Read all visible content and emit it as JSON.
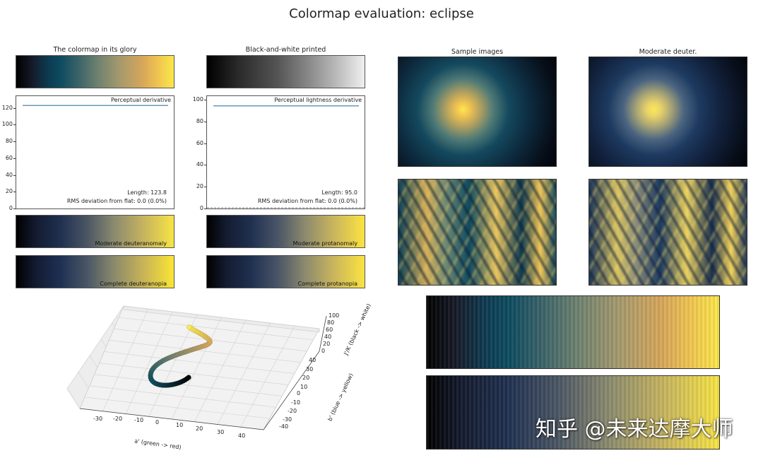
{
  "title": "Colormap evaluation: eclipse",
  "left_column": {
    "title": "The colormap in its glory",
    "derivative_label": "Perceptual derivative",
    "length_text": "Length: 123.8",
    "rms_text": "RMS deviation from flat: 0.0 (0.0%)",
    "yticks": [
      "0",
      "20",
      "40",
      "60",
      "80",
      "100",
      "120"
    ],
    "moderate_label": "Moderate deuteranomaly",
    "complete_label": "Complete deuteranopia"
  },
  "middle_column": {
    "title": "Black-and-white printed",
    "derivative_label": "Perceptual lightness derivative",
    "length_text": "Length: 95.0",
    "rms_text": "RMS deviation from flat: 0.0 (0.0%)",
    "yticks": [
      "0",
      "20",
      "40",
      "60",
      "80",
      "100"
    ],
    "moderate_label": "Moderate protanomaly",
    "complete_label": "Complete protanopia"
  },
  "right_column": {
    "sample_title": "Sample images",
    "deuter_title": "Moderate deuter."
  },
  "plot3d": {
    "xlabel": "a' (green -> red)",
    "ylabel": "b' (blue -> yellow)",
    "zlabel": "J'/K (black -> white)",
    "xticks": [
      "-30",
      "-20",
      "-10",
      "0",
      "10",
      "20",
      "30",
      "40"
    ],
    "yticks": [
      "40",
      "30",
      "20",
      "10",
      "0",
      "-10",
      "-20",
      "-30",
      "-40"
    ],
    "zticks": [
      "100",
      "80",
      "60",
      "40",
      "20",
      "0"
    ]
  },
  "watermark": "知乎 @未来达摩大师",
  "chart_data": [
    {
      "type": "line",
      "title": "",
      "annotation": "Perceptual derivative",
      "x": [
        0,
        1
      ],
      "values": [
        123.8,
        123.8
      ],
      "ylim": [
        0,
        135
      ],
      "color": "#6a9ab8"
    },
    {
      "type": "line",
      "title": "",
      "annotation": "Perceptual lightness derivative",
      "x": [
        0,
        1
      ],
      "values": [
        95.0,
        95.0
      ],
      "ylim": [
        0,
        104
      ],
      "color": "#6a9ab8"
    }
  ]
}
